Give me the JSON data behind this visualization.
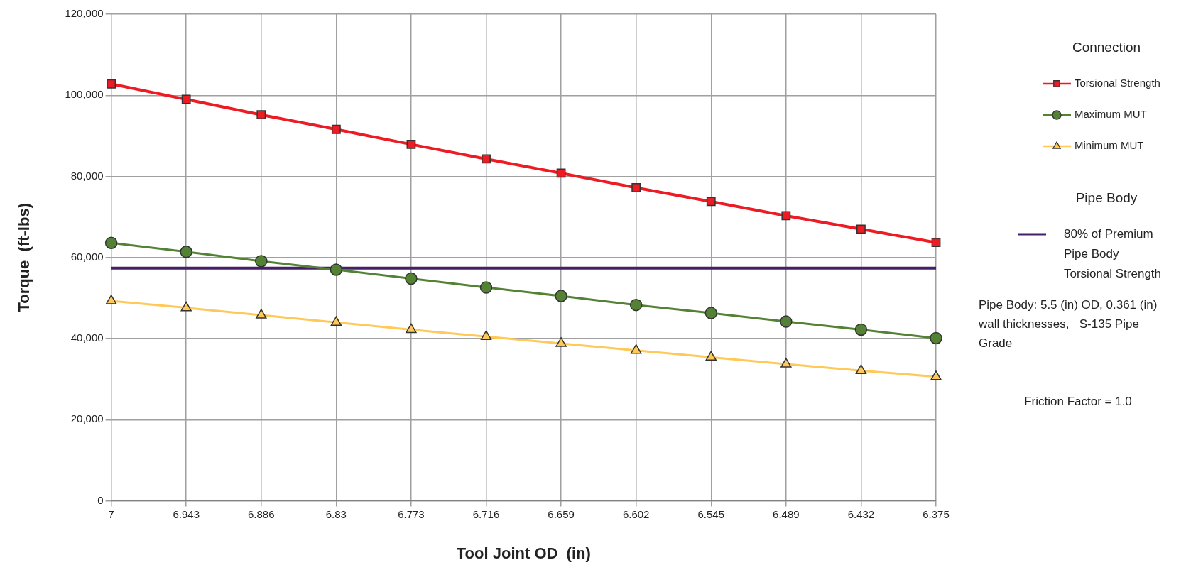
{
  "chart_data": {
    "type": "line",
    "xlabel": "Tool Joint OD  (in)",
    "ylabel": "Torque  (ft-lbs)",
    "categories": [
      "7",
      "6.943",
      "6.886",
      "6.83",
      "6.773",
      "6.716",
      "6.659",
      "6.602",
      "6.545",
      "6.489",
      "6.432",
      "6.375"
    ],
    "series": [
      {
        "name": "Torsional Strength",
        "color": "#ed1c24",
        "marker": "square",
        "values": [
          102800,
          99000,
          95200,
          91600,
          87900,
          84300,
          80800,
          77200,
          73800,
          70300,
          67000,
          63700
        ]
      },
      {
        "name": "Maximum MUT",
        "color": "#548235",
        "marker": "circle",
        "values": [
          63600,
          61400,
          59100,
          57000,
          54800,
          52600,
          50500,
          48300,
          46300,
          44200,
          42200,
          40100
        ]
      },
      {
        "name": "Minimum MUT",
        "color": "#ffc857",
        "marker": "triangle",
        "values": [
          49300,
          47600,
          45800,
          44000,
          42200,
          40500,
          38800,
          37100,
          35400,
          33700,
          32100,
          30600
        ]
      },
      {
        "name": "80% of Premium Pipe Body Torsional Strength",
        "color": "#44206a",
        "marker": "none",
        "values": [
          57400,
          57400,
          57400,
          57400,
          57400,
          57400,
          57400,
          57400,
          57400,
          57400,
          57400,
          57400
        ]
      }
    ],
    "ylim": [
      0,
      120000
    ],
    "yticks": [
      {
        "value": 0,
        "label": "0"
      },
      {
        "value": 20000,
        "label": "20,000"
      },
      {
        "value": 40000,
        "label": "40,000"
      },
      {
        "value": 60000,
        "label": "60,000"
      },
      {
        "value": 80000,
        "label": "80,000"
      },
      {
        "value": 100000,
        "label": "100,000"
      },
      {
        "value": 120000,
        "label": "120,000"
      }
    ],
    "grid": true,
    "legend": "right",
    "legend_title": "Connection",
    "annotations": [
      "Pipe Body",
      "Pipe Body: 5.5 (in) OD, 0.361 (in) wall thicknesses,   S-135 Pipe Grade",
      "Friction Factor = 1.0"
    ]
  }
}
